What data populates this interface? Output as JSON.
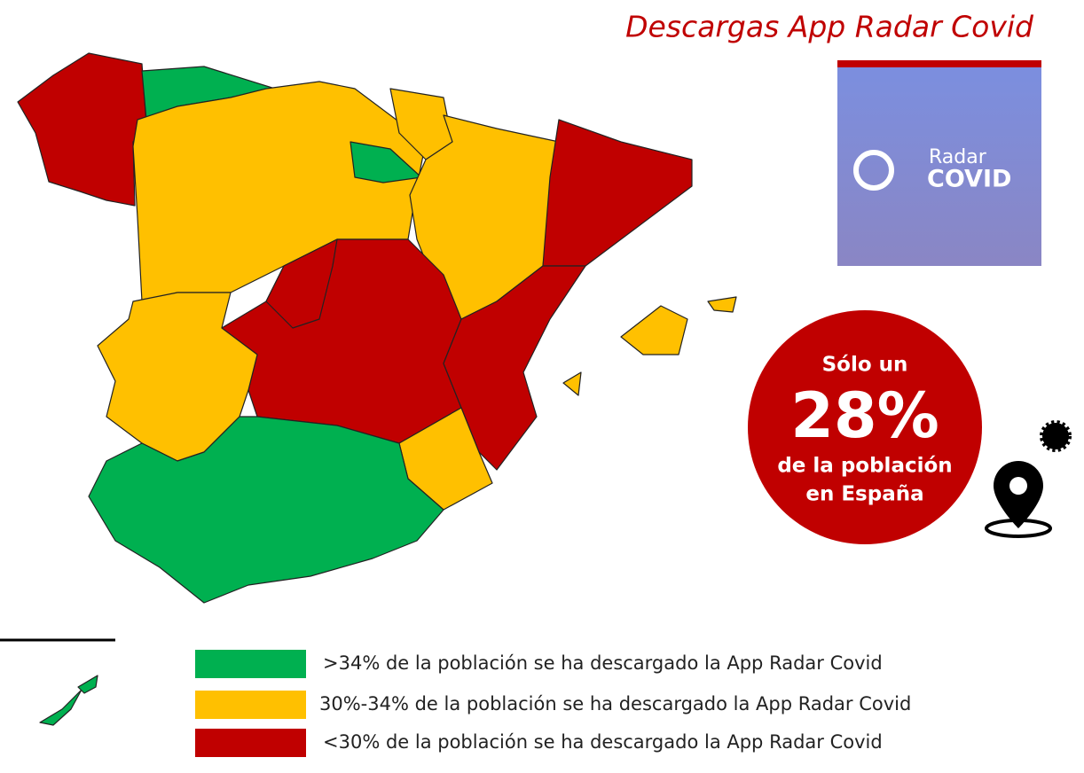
{
  "title": "Descargas App Radar Covid",
  "logo": {
    "line1": "Radar",
    "line2": "COVID"
  },
  "callout": {
    "line1": "Sólo un",
    "value": "28%",
    "line2": "de la población",
    "line3": "en España"
  },
  "legend": [
    {
      "label": ">34% de la población se ha descargado la App Radar Covid",
      "color": "#00b050"
    },
    {
      "label": "30%-34% de la población se ha descargado la App Radar Covid",
      "color": "#ffc000"
    },
    {
      "label": "<30% de la población se ha descargado la App Radar Covid",
      "color": "#c00000"
    }
  ]
}
